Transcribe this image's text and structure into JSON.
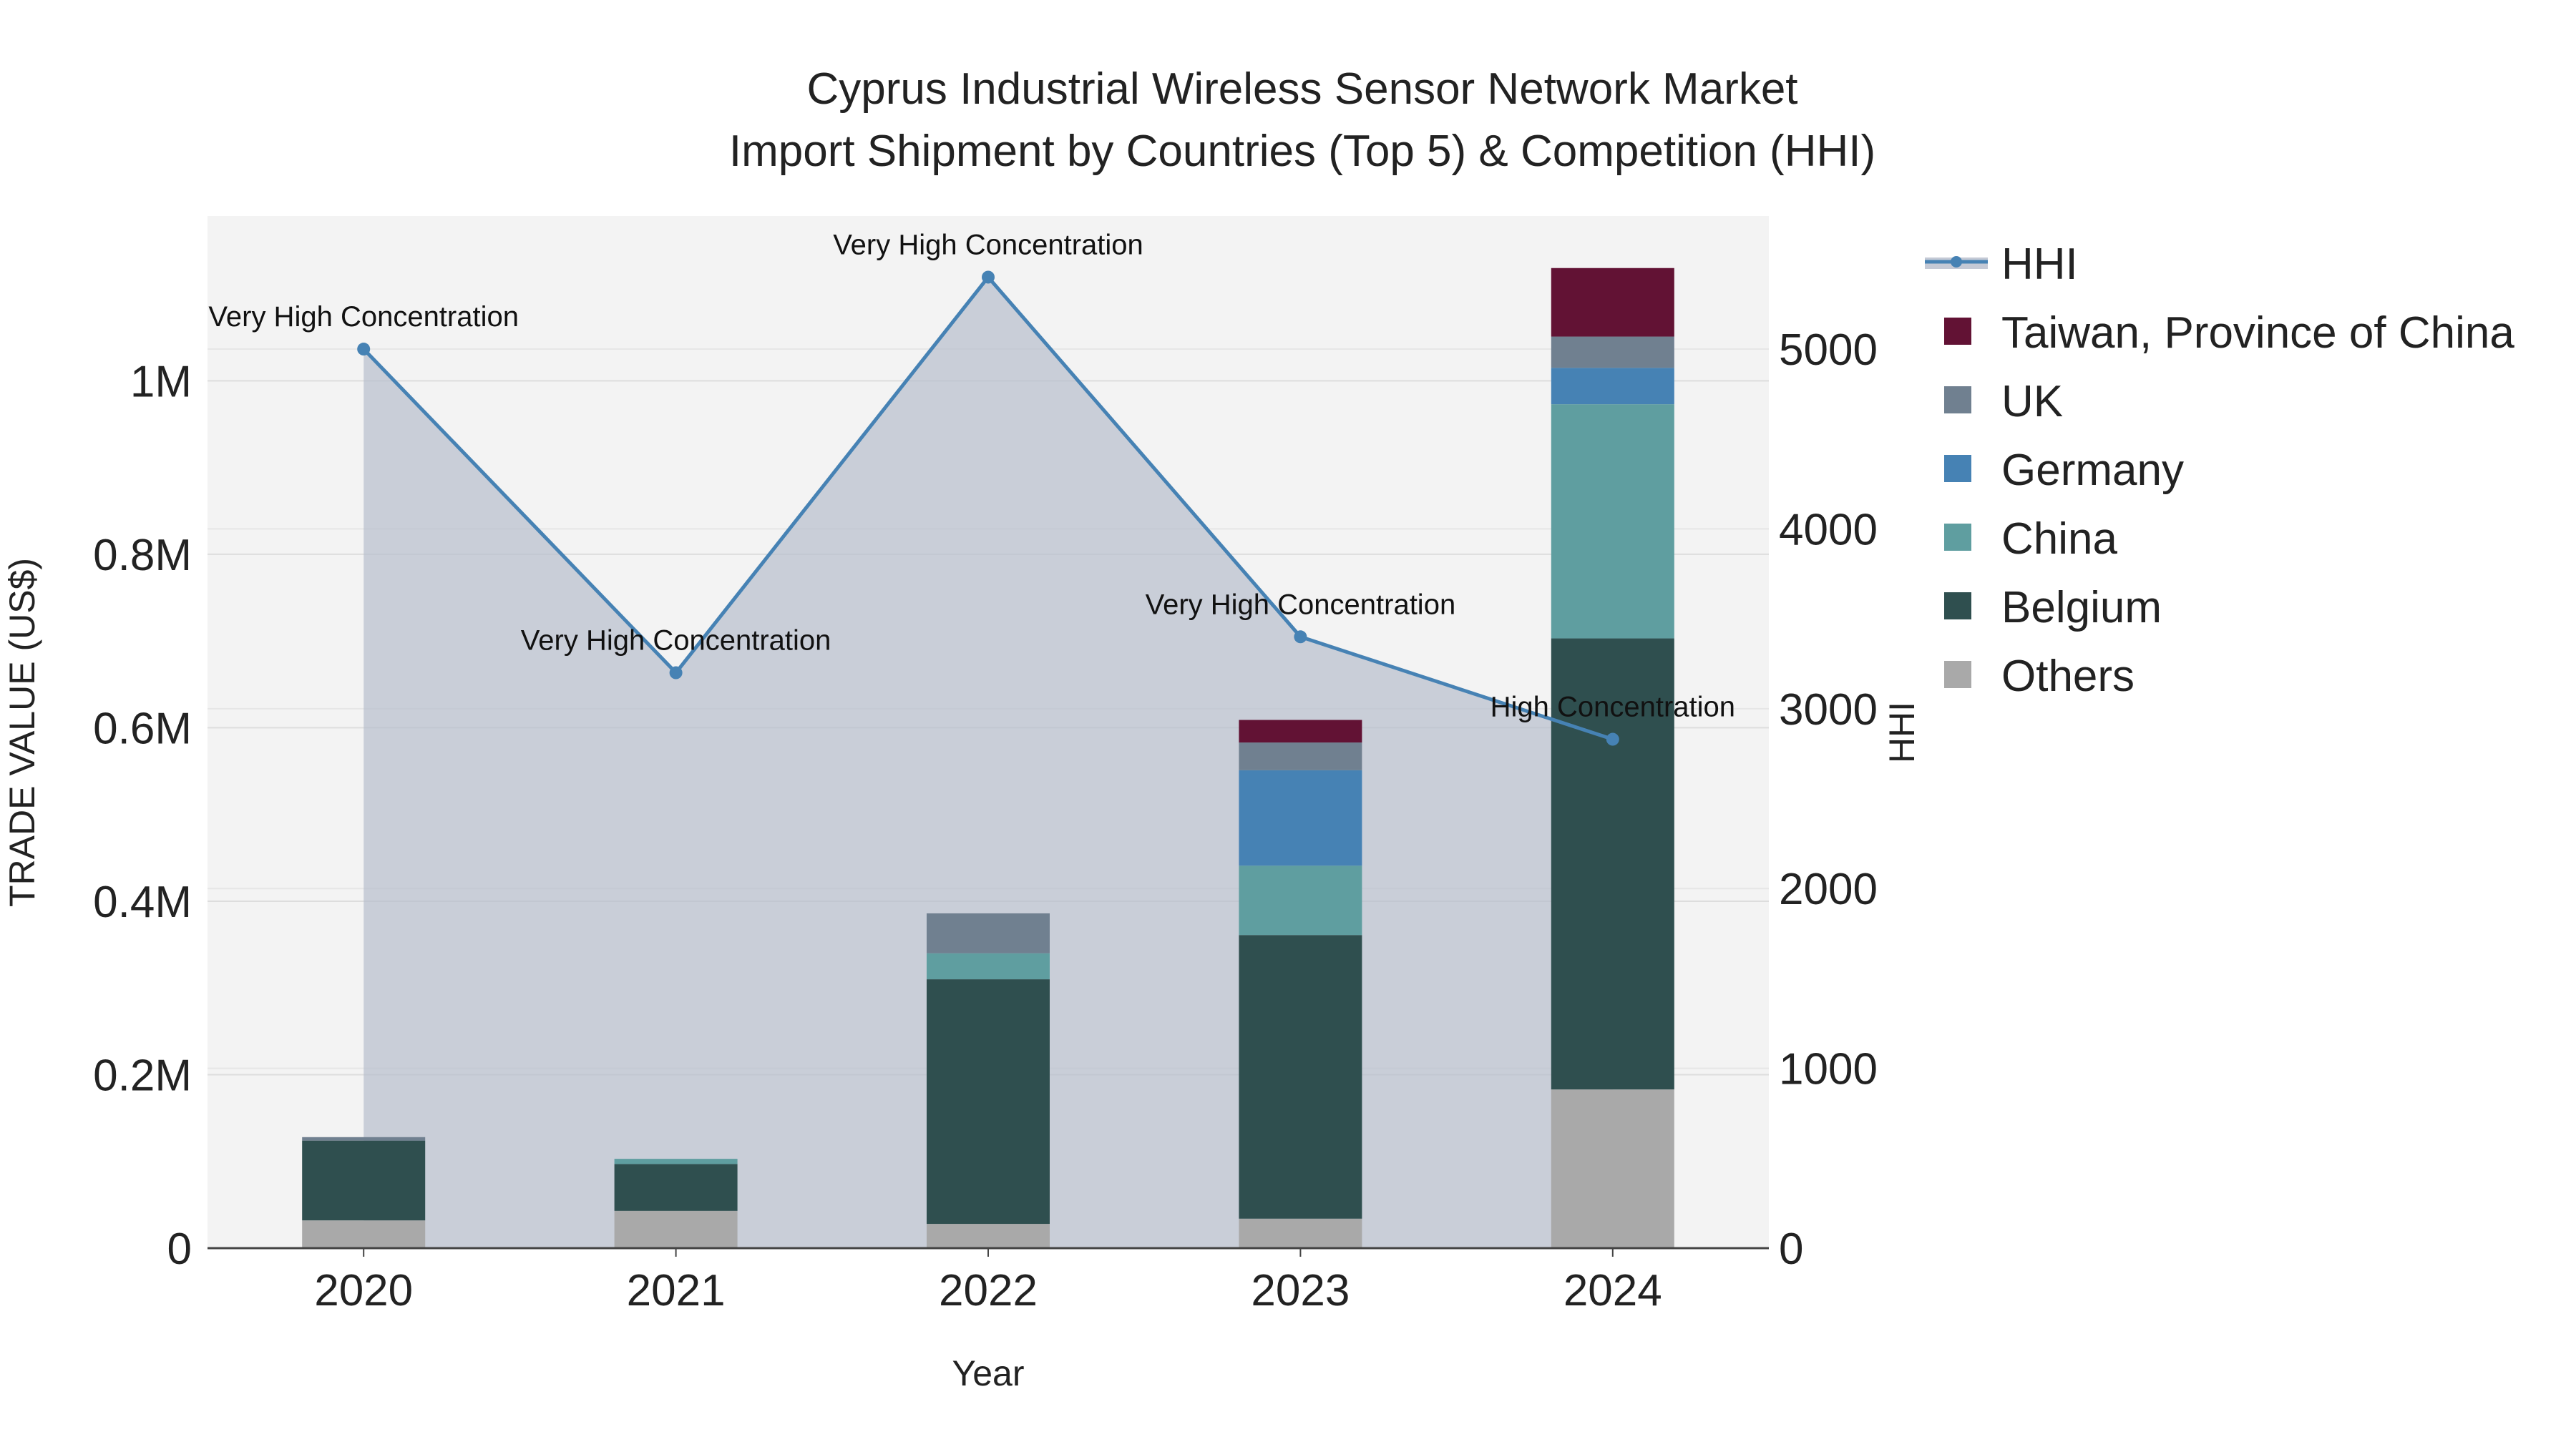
{
  "chart_data": {
    "type": "bar",
    "title_line1": "Cyprus Industrial Wireless Sensor Network Market",
    "title_line2": "Import Shipment by Countries (Top 5) & Competition (HHI)",
    "xlabel": "Year",
    "ylabel": "TRADE VALUE (US$)",
    "y2label": "HHI",
    "categories": [
      "2020",
      "2021",
      "2022",
      "2023",
      "2024"
    ],
    "ylim": [
      0,
      1190000
    ],
    "y2lim": [
      0,
      5740
    ],
    "y_ticks": [
      {
        "value": 0,
        "label": "0"
      },
      {
        "value": 200000,
        "label": "0.2M"
      },
      {
        "value": 400000,
        "label": "0.4M"
      },
      {
        "value": 600000,
        "label": "0.6M"
      },
      {
        "value": 800000,
        "label": "0.8M"
      },
      {
        "value": 1000000,
        "label": "1M"
      }
    ],
    "y2_ticks": [
      {
        "value": 0,
        "label": "0"
      },
      {
        "value": 1000,
        "label": "1000"
      },
      {
        "value": 2000,
        "label": "2000"
      },
      {
        "value": 3000,
        "label": "3000"
      },
      {
        "value": 4000,
        "label": "4000"
      },
      {
        "value": 5000,
        "label": "5000"
      }
    ],
    "series": [
      {
        "name": "Others",
        "color": "#a9a9a9",
        "values": [
          32000,
          43000,
          28000,
          34000,
          183000
        ]
      },
      {
        "name": "Belgium",
        "color": "#2f4f4f",
        "values": [
          92000,
          54000,
          282000,
          327000,
          520000
        ]
      },
      {
        "name": "China",
        "color": "#5f9ea0",
        "values": [
          0,
          6000,
          30000,
          80000,
          270000
        ]
      },
      {
        "name": "Germany",
        "color": "#4682b4",
        "values": [
          0,
          0,
          0,
          110000,
          42000
        ]
      },
      {
        "name": "UK",
        "color": "#708090",
        "values": [
          4000,
          0,
          46000,
          32000,
          36000
        ]
      },
      {
        "name": "Taiwan, Province of China",
        "color": "#621234",
        "values": [
          0,
          0,
          0,
          26000,
          79000
        ]
      }
    ],
    "hhi": {
      "name": "HHI",
      "color": "#4682b4",
      "values": [
        5000,
        3200,
        5400,
        3400,
        2830
      ],
      "labels": [
        "Very High Concentration",
        "Very High Concentration",
        "Very High Concentration",
        "Very High Concentration",
        "High Concentration"
      ]
    },
    "legend_order": [
      "HHI",
      "Taiwan, Province of China",
      "UK",
      "Germany",
      "China",
      "Belgium",
      "Others"
    ]
  }
}
